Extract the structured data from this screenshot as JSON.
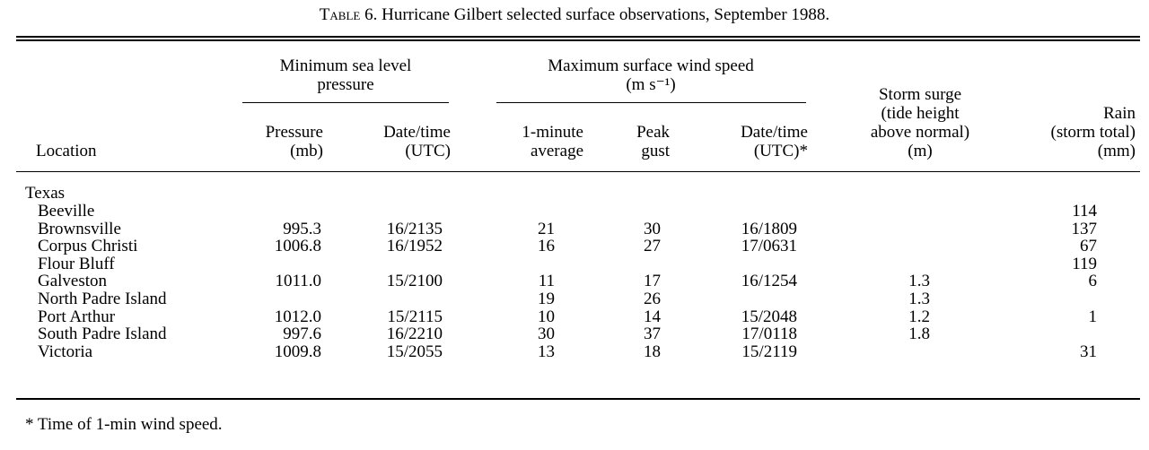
{
  "caption": {
    "label": "Table 6.",
    "text": "Hurricane Gilbert selected surface observations, September 1988."
  },
  "group_headers": {
    "pressure_group": "Minimum sea level pressure",
    "wind_group": "Maximum surface wind speed (m s⁻¹)"
  },
  "columns": {
    "location": "Location",
    "pressure": "Pressure (mb)",
    "pressure_time": "Date/time (UTC)",
    "avg_wind": "1-minute average",
    "gust": "Peak gust",
    "wind_time": "Date/time (UTC)*",
    "surge": "Storm surge (tide height above normal) (m)",
    "rain": "Rain (storm total) (mm)"
  },
  "section": "Texas",
  "rows": [
    {
      "location": "Beeville",
      "pressure": "",
      "pressure_time": "",
      "avg": "",
      "gust": "",
      "wind_time": "",
      "surge": "",
      "rain": "114"
    },
    {
      "location": "Brownsville",
      "pressure": "995.3",
      "pressure_time": "16/2135",
      "avg": "21",
      "gust": "30",
      "wind_time": "16/1809",
      "surge": "",
      "rain": "137"
    },
    {
      "location": "Corpus Christi",
      "pressure": "1006.8",
      "pressure_time": "16/1952",
      "avg": "16",
      "gust": "27",
      "wind_time": "17/0631",
      "surge": "",
      "rain": "67"
    },
    {
      "location": "Flour Bluff",
      "pressure": "",
      "pressure_time": "",
      "avg": "",
      "gust": "",
      "wind_time": "",
      "surge": "",
      "rain": "119"
    },
    {
      "location": "Galveston",
      "pressure": "1011.0",
      "pressure_time": "15/2100",
      "avg": "11",
      "gust": "17",
      "wind_time": "16/1254",
      "surge": "1.3",
      "rain": "6"
    },
    {
      "location": "North Padre Island",
      "pressure": "",
      "pressure_time": "",
      "avg": "19",
      "gust": "26",
      "wind_time": "",
      "surge": "1.3",
      "rain": ""
    },
    {
      "location": "Port Arthur",
      "pressure": "1012.0",
      "pressure_time": "15/2115",
      "avg": "10",
      "gust": "14",
      "wind_time": "15/2048",
      "surge": "1.2",
      "rain": "1"
    },
    {
      "location": "South Padre Island",
      "pressure": "997.6",
      "pressure_time": "16/2210",
      "avg": "30",
      "gust": "37",
      "wind_time": "17/0118",
      "surge": "1.8",
      "rain": ""
    },
    {
      "location": "Victoria",
      "pressure": "1009.8",
      "pressure_time": "15/2055",
      "avg": "13",
      "gust": "18",
      "wind_time": "15/2119",
      "surge": "",
      "rain": "31"
    }
  ],
  "footnote": "* Time of 1-min wind speed."
}
